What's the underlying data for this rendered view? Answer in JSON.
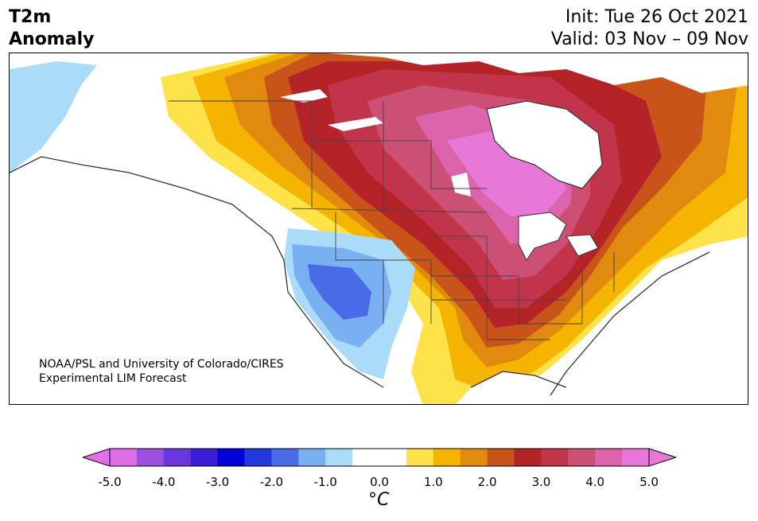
{
  "header": {
    "title_line1": "T2m",
    "title_line2": "Anomaly",
    "init": "Init: Tue 26 Oct 2021",
    "valid": "Valid: 03 Nov – 09 Nov"
  },
  "credit": {
    "line1": "NOAA/PSL and University of Colorado/CIRES",
    "line2": "Experimental LIM Forecast"
  },
  "colorbar": {
    "unit_label": "°C",
    "ticks": [
      "-5.0",
      "-4.0",
      "-3.0",
      "-2.0",
      "-1.0",
      "0.0",
      "1.0",
      "2.0",
      "3.0",
      "4.0",
      "5.0"
    ],
    "colors": [
      "#dc6ee6",
      "#9b50e0",
      "#6a37de",
      "#3a1ed6",
      "#0000d8",
      "#2338dc",
      "#4a6be6",
      "#78b0f2",
      "#aadcfa",
      "#ffffff",
      "#ffffff",
      "#fde24a",
      "#f5b400",
      "#e08a10",
      "#c8541a",
      "#b42328",
      "#c2344a",
      "#cc4f74",
      "#dc64ac",
      "#e878d8"
    ],
    "low_arrow_color": "#e070e8",
    "high_arrow_color": "#e878d8"
  },
  "palette": {
    "land_outline": "#333333",
    "water": "#ffffff",
    "cool1": "#aadcfa",
    "cool2": "#78b0f2",
    "cool3": "#4a6be6",
    "warm1": "#fde24a",
    "warm2": "#f5b400",
    "warm3": "#e08a10",
    "warm4": "#c8541a",
    "warm5": "#b42328",
    "warm6": "#c2344a",
    "warm7": "#cc4f74",
    "warm8": "#dc64ac",
    "warm9": "#e878d8"
  }
}
